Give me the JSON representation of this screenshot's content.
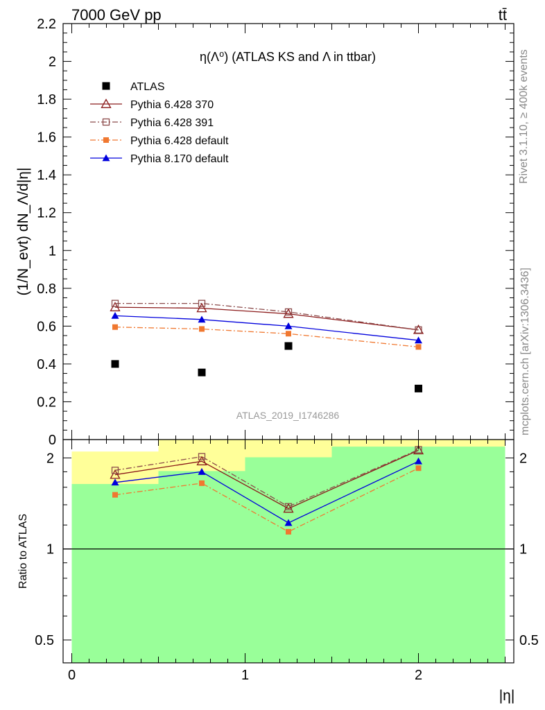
{
  "header": {
    "left": "7000 GeV pp",
    "right": "tt̄"
  },
  "side": {
    "rivet": "Rivet 3.1.10, ≥ 400k events",
    "mcplots": "mcplots.cern.ch [arXiv:1306.3436]"
  },
  "main_plot": {
    "title": "η(Λ⁰) (ATLAS KS and Λ in ttbar)",
    "ylabel": "(1/N_evt) dN_Λ/d|η|",
    "watermark": "ATLAS_2019_I1746286"
  },
  "ratio_plot": {
    "ylabel": "Ratio to ATLAS",
    "xlabel": "|η|"
  },
  "chart_data": [
    {
      "type": "line",
      "title": "η(Λ⁰) (ATLAS KS and Λ in ttbar)",
      "xlabel": "",
      "ylabel": "(1/N_evt) dN_Λ/d|η|",
      "xlim": [
        -0.05,
        2.55
      ],
      "ylim": [
        0,
        2.2
      ],
      "x": [
        0.25,
        0.75,
        1.25,
        2.0
      ],
      "xticks": [
        0,
        1,
        2
      ],
      "yticks": [
        0,
        0.2,
        0.4,
        0.6,
        0.8,
        1,
        1.2,
        1.4,
        1.6,
        1.8,
        2,
        2.2
      ],
      "ytick_labels": [
        "0",
        "0.2",
        "0.4",
        "0.6",
        "0.8",
        "1",
        "1.2",
        "1.4",
        "1.6",
        "1.8",
        "2",
        "2.2"
      ],
      "series": [
        {
          "name": "ATLAS",
          "values": [
            0.4,
            0.355,
            0.495,
            0.27
          ],
          "color": "#000000",
          "marker": "square-filled",
          "line": "none"
        },
        {
          "name": "Pythia 6.428 370",
          "values": [
            0.7,
            0.695,
            0.665,
            0.58
          ],
          "color": "#8b1a1a",
          "marker": "triangle-open",
          "line": "solid"
        },
        {
          "name": "Pythia 6.428 391",
          "values": [
            0.72,
            0.72,
            0.675,
            0.58
          ],
          "color": "#8b4a4a",
          "marker": "square-open",
          "line": "dashdot"
        },
        {
          "name": "Pythia 6.428 default",
          "values": [
            0.595,
            0.585,
            0.56,
            0.49
          ],
          "color": "#f07830",
          "marker": "square-filled-small",
          "line": "dashdot"
        },
        {
          "name": "Pythia 8.170 default",
          "values": [
            0.655,
            0.635,
            0.6,
            0.525
          ],
          "color": "#0000dd",
          "marker": "triangle-filled",
          "line": "solid"
        }
      ],
      "legend": "top-left",
      "grid": false
    },
    {
      "type": "line",
      "title": "",
      "xlabel": "|η|",
      "ylabel": "Ratio to ATLAS",
      "scale": "log",
      "xlim": [
        -0.05,
        2.55
      ],
      "ylim": [
        0.42,
        2.3
      ],
      "x": [
        0.25,
        0.75,
        1.25,
        2.0
      ],
      "xticks": [
        0,
        1,
        2
      ],
      "yticks": [
        0.5,
        1,
        2
      ],
      "ytick_labels": [
        "0.5",
        "1",
        "2"
      ],
      "bands": {
        "bins": [
          [
            0,
            0.5
          ],
          [
            0.5,
            1.0
          ],
          [
            1.0,
            1.5
          ],
          [
            1.5,
            2.5
          ]
        ],
        "yellow": [
          [
            0.4,
            2.1
          ],
          [
            0.42,
            2.3
          ],
          [
            0.42,
            2.3
          ],
          [
            0.42,
            2.3
          ]
        ],
        "green": [
          [
            0.42,
            1.64
          ],
          [
            0.42,
            1.81
          ],
          [
            0.42,
            2.01
          ],
          [
            0.42,
            2.18
          ]
        ]
      },
      "reference": 1,
      "series": [
        {
          "name": "Pythia 6.428 370",
          "values": [
            1.76,
            1.95,
            1.36,
            2.12
          ],
          "color": "#8b1a1a",
          "marker": "triangle-open",
          "line": "solid"
        },
        {
          "name": "Pythia 6.428 391",
          "values": [
            1.82,
            2.02,
            1.38,
            2.13
          ],
          "color": "#8b4a4a",
          "marker": "square-open",
          "line": "dashdot"
        },
        {
          "name": "Pythia 6.428 default",
          "values": [
            1.51,
            1.65,
            1.14,
            1.85
          ],
          "color": "#f07830",
          "marker": "square-filled-small",
          "line": "dashdot"
        },
        {
          "name": "Pythia 8.170 default",
          "values": [
            1.66,
            1.8,
            1.22,
            1.95
          ],
          "color": "#0000dd",
          "marker": "triangle-filled",
          "line": "solid"
        }
      ],
      "colors": {
        "yellow_band": "#ffff99",
        "green_band": "#99ff99"
      }
    }
  ]
}
